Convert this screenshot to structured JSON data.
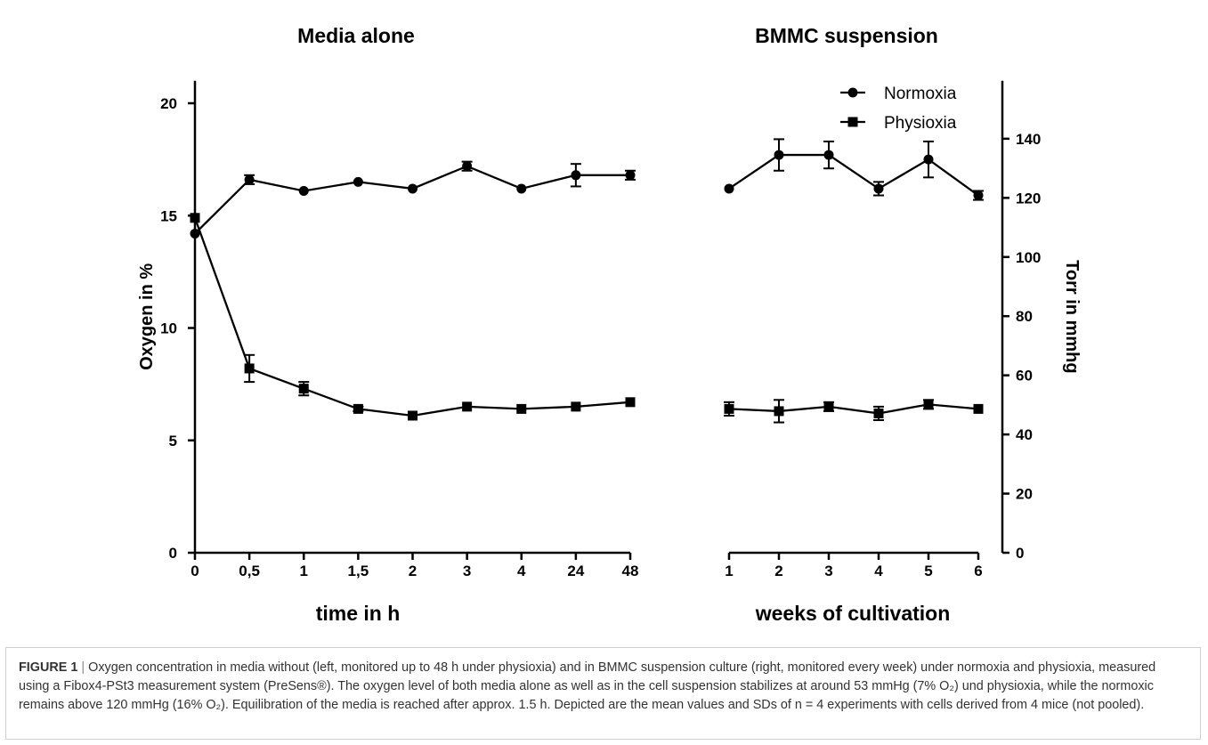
{
  "chart_data": {
    "type": "line",
    "left_panel": {
      "title": "Media alone",
      "xlabel": "time in h",
      "categories": [
        "0",
        "0,5",
        "1",
        "1,5",
        "2",
        "3",
        "4",
        "24",
        "48"
      ],
      "series": [
        {
          "name": "Normoxia",
          "marker": "circle",
          "values": [
            14.2,
            16.6,
            16.1,
            16.5,
            16.2,
            17.2,
            16.2,
            16.8,
            16.8
          ],
          "sd": [
            0.0,
            0.2,
            0.0,
            0.0,
            0.0,
            0.2,
            0.0,
            0.5,
            0.2
          ]
        },
        {
          "name": "Physioxia",
          "marker": "square",
          "values": [
            14.9,
            8.2,
            7.3,
            6.4,
            6.1,
            6.5,
            6.4,
            6.5,
            6.7
          ],
          "sd": [
            0.0,
            0.6,
            0.3,
            0.1,
            0.0,
            0.0,
            0.0,
            0.0,
            0.0
          ]
        }
      ]
    },
    "right_panel": {
      "title": "BMMC suspension",
      "xlabel": "weeks of cultivation",
      "categories": [
        "1",
        "2",
        "3",
        "4",
        "5",
        "6"
      ],
      "series": [
        {
          "name": "Normoxia",
          "marker": "circle",
          "values": [
            16.2,
            17.7,
            17.7,
            16.2,
            17.5,
            15.9
          ],
          "sd": [
            0.0,
            0.7,
            0.6,
            0.3,
            0.8,
            0.2
          ]
        },
        {
          "name": "Physioxia",
          "marker": "square",
          "values": [
            6.4,
            6.3,
            6.5,
            6.2,
            6.6,
            6.4
          ],
          "sd": [
            0.3,
            0.5,
            0.2,
            0.3,
            0.2,
            0.0
          ]
        }
      ]
    },
    "y_left": {
      "label": "Oxygen in %",
      "ticks": [
        0,
        5,
        10,
        15,
        20
      ],
      "ylim": [
        0,
        21
      ]
    },
    "y_right": {
      "label": "Torr in mmhg",
      "ticks": [
        0,
        20,
        40,
        60,
        80,
        100,
        120,
        140
      ],
      "ylim": [
        0,
        159.6
      ]
    },
    "legend": {
      "position": "top-right",
      "entries": [
        "Normoxia",
        "Physioxia"
      ]
    },
    "grid": false
  },
  "caption": {
    "label": "FIGURE 1",
    "separator": "|",
    "text": "Oxygen concentration in media without (left, monitored up to 48 h under physioxia) and in BMMC suspension culture (right, monitored every week) under normoxia and physioxia, measured using a Fibox4-PSt3 measurement system (PreSens®). The oxygen level of both media alone as well as in the cell suspension stabilizes at around 53 mmHg (7% O₂) und physioxia, while the normoxic remains above 120 mmHg (16% O₂). Equilibration of the media is reached after approx. 1.5 h. Depicted are the mean values and SDs of n = 4 experiments with cells derived from 4 mice (not pooled)."
  }
}
